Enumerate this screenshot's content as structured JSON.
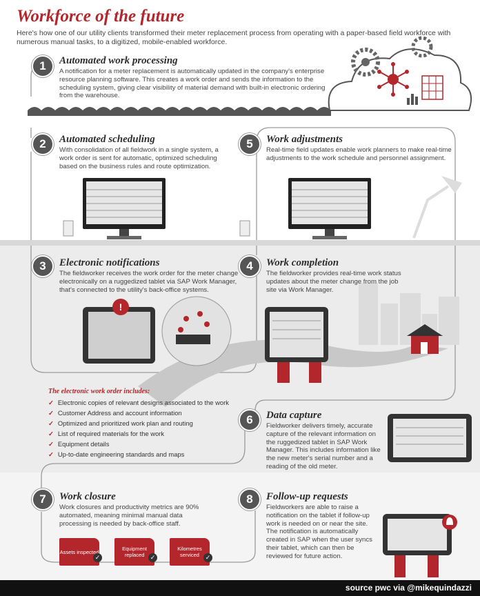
{
  "title": "Workforce of the future",
  "intro": "Here's how one of our utility clients transformed their meter replacement process from operating with a paper-based field workforce with numerous manual tasks, to a digitized, mobile-enabled workforce.",
  "steps": [
    {
      "num": "1",
      "title": "Automated work processing",
      "desc": "A notification for a meter replacement is automatically updated in the company's enterprise resource planning software. This creates a work order and sends the information to the scheduling system, giving clear visibility of material demand with built-in electronic ordering from the warehouse."
    },
    {
      "num": "2",
      "title": "Automated scheduling",
      "desc": "With consolidation of all fieldwork in a single system, a work order is sent for automatic, optimized scheduling based on the business rules and route optimization."
    },
    {
      "num": "3",
      "title": "Electronic notifications",
      "desc": "The fieldworker receives the work order for the meter change electronically on a ruggedized tablet via SAP Work Manager, that's connected to the utility's back-office systems."
    },
    {
      "num": "4",
      "title": "Work completion",
      "desc": "The fieldworker provides real-time work status updates about the meter change from the job site via Work Manager."
    },
    {
      "num": "5",
      "title": "Work adjustments",
      "desc": "Real-time field updates enable work planners to make real-time adjustments to the work schedule and personnel assignment."
    },
    {
      "num": "6",
      "title": "Data capture",
      "desc": "Fieldworker delivers timely, accurate capture of the relevant information on the ruggedized tablet in SAP Work Manager. This includes information like the new meter's serial number and a reading of the old meter."
    },
    {
      "num": "7",
      "title": "Work closure",
      "desc": "Work closures and productivity metrics are 90% automated, meaning minimal manual data processing is needed by back-office staff."
    },
    {
      "num": "8",
      "title": "Follow-up requests",
      "desc": "Fieldworkers are able to raise a notification on the tablet if follow-up work is needed on or near the site. The notification is automatically created in SAP when the user syncs their tablet, which can then be reviewed for future action."
    }
  ],
  "includes": {
    "title": "The electronic work order includes:",
    "items": [
      "Electronic copies of relevant designs associated to the work",
      "Customer Address and account information",
      "Optimized and prioritized work plan and routing",
      "List of required materials for the work",
      "Equipment details",
      "Up-to-date engineering standards and maps"
    ]
  },
  "folders": [
    "Assets inspected",
    "Equipment replaced",
    "Kilometres serviced"
  ],
  "footer": "source pwc via @mikequindazzi",
  "colors": {
    "accent": "#b3262b",
    "dark": "#555555",
    "band": "#ececec",
    "footer": "#111111"
  }
}
